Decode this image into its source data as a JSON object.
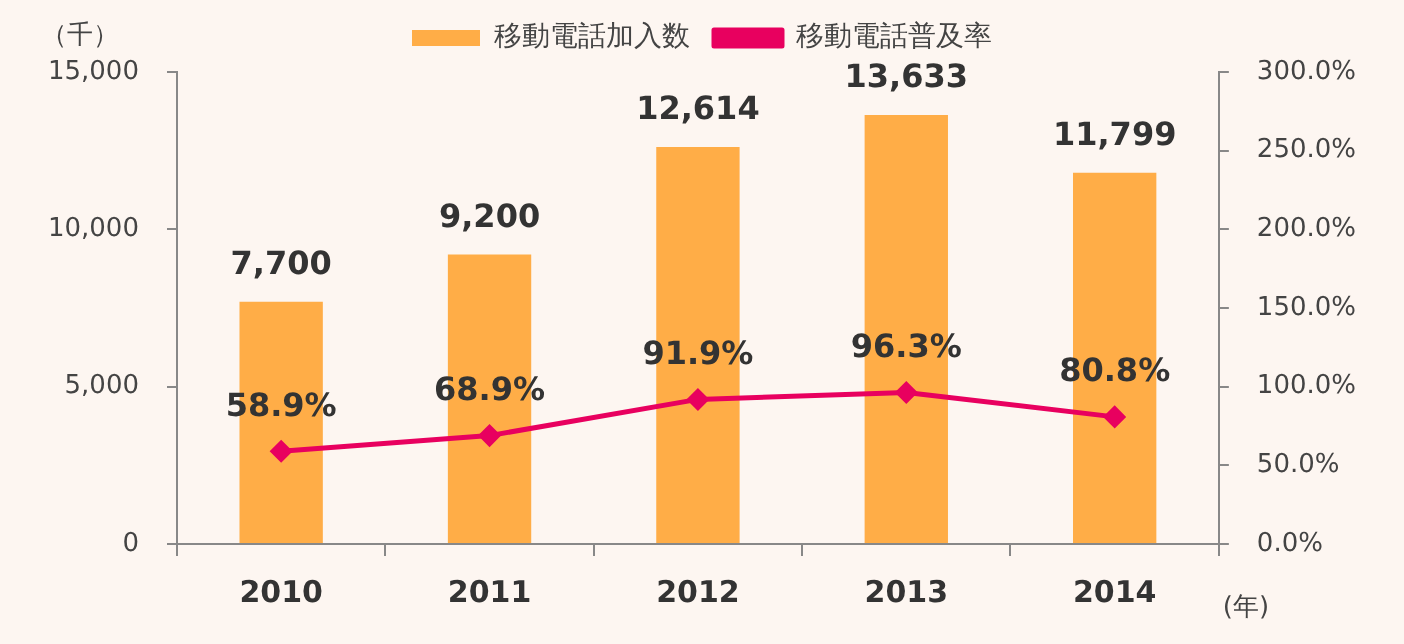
{
  "chart_data": {
    "type": "bar",
    "categories": [
      "2010",
      "2011",
      "2012",
      "2013",
      "2014"
    ],
    "ylabel": "（千）",
    "xlabel": "(年)",
    "series": [
      {
        "name": "移動電話加入数",
        "color": "#ffad47",
        "values": [
          7700,
          9200,
          12614,
          13633,
          11799
        ],
        "value_labels": [
          "7,700",
          "9,200",
          "12,614",
          "13,633",
          "11,799"
        ]
      },
      {
        "name": "移動電話普及率",
        "type": "line",
        "axis": "y2",
        "color": "#e8005f",
        "values": [
          58.9,
          68.9,
          91.9,
          96.3,
          80.8
        ],
        "value_labels": [
          "58.9%",
          "68.9%",
          "91.9%",
          "96.3%",
          "80.8%"
        ]
      }
    ],
    "ylim": [
      0,
      15000
    ],
    "yticks": [
      {
        "value": 0,
        "label": "0"
      },
      {
        "value": 5000,
        "label": "5,000"
      },
      {
        "value": 10000,
        "label": "10,000"
      },
      {
        "value": 15000,
        "label": "15,000"
      }
    ],
    "y2lim": [
      0,
      300
    ],
    "y2ticks": [
      {
        "value": 0,
        "label": "0.0%"
      },
      {
        "value": 50,
        "label": "50.0%"
      },
      {
        "value": 100,
        "label": "100.0%"
      },
      {
        "value": 150,
        "label": "150.0%"
      },
      {
        "value": 200,
        "label": "200.0%"
      },
      {
        "value": 250,
        "label": "250.0%"
      },
      {
        "value": 300,
        "label": "300.0%"
      }
    ],
    "grid": false,
    "legend": "top",
    "marker": "diamond",
    "line_style": "solid"
  }
}
